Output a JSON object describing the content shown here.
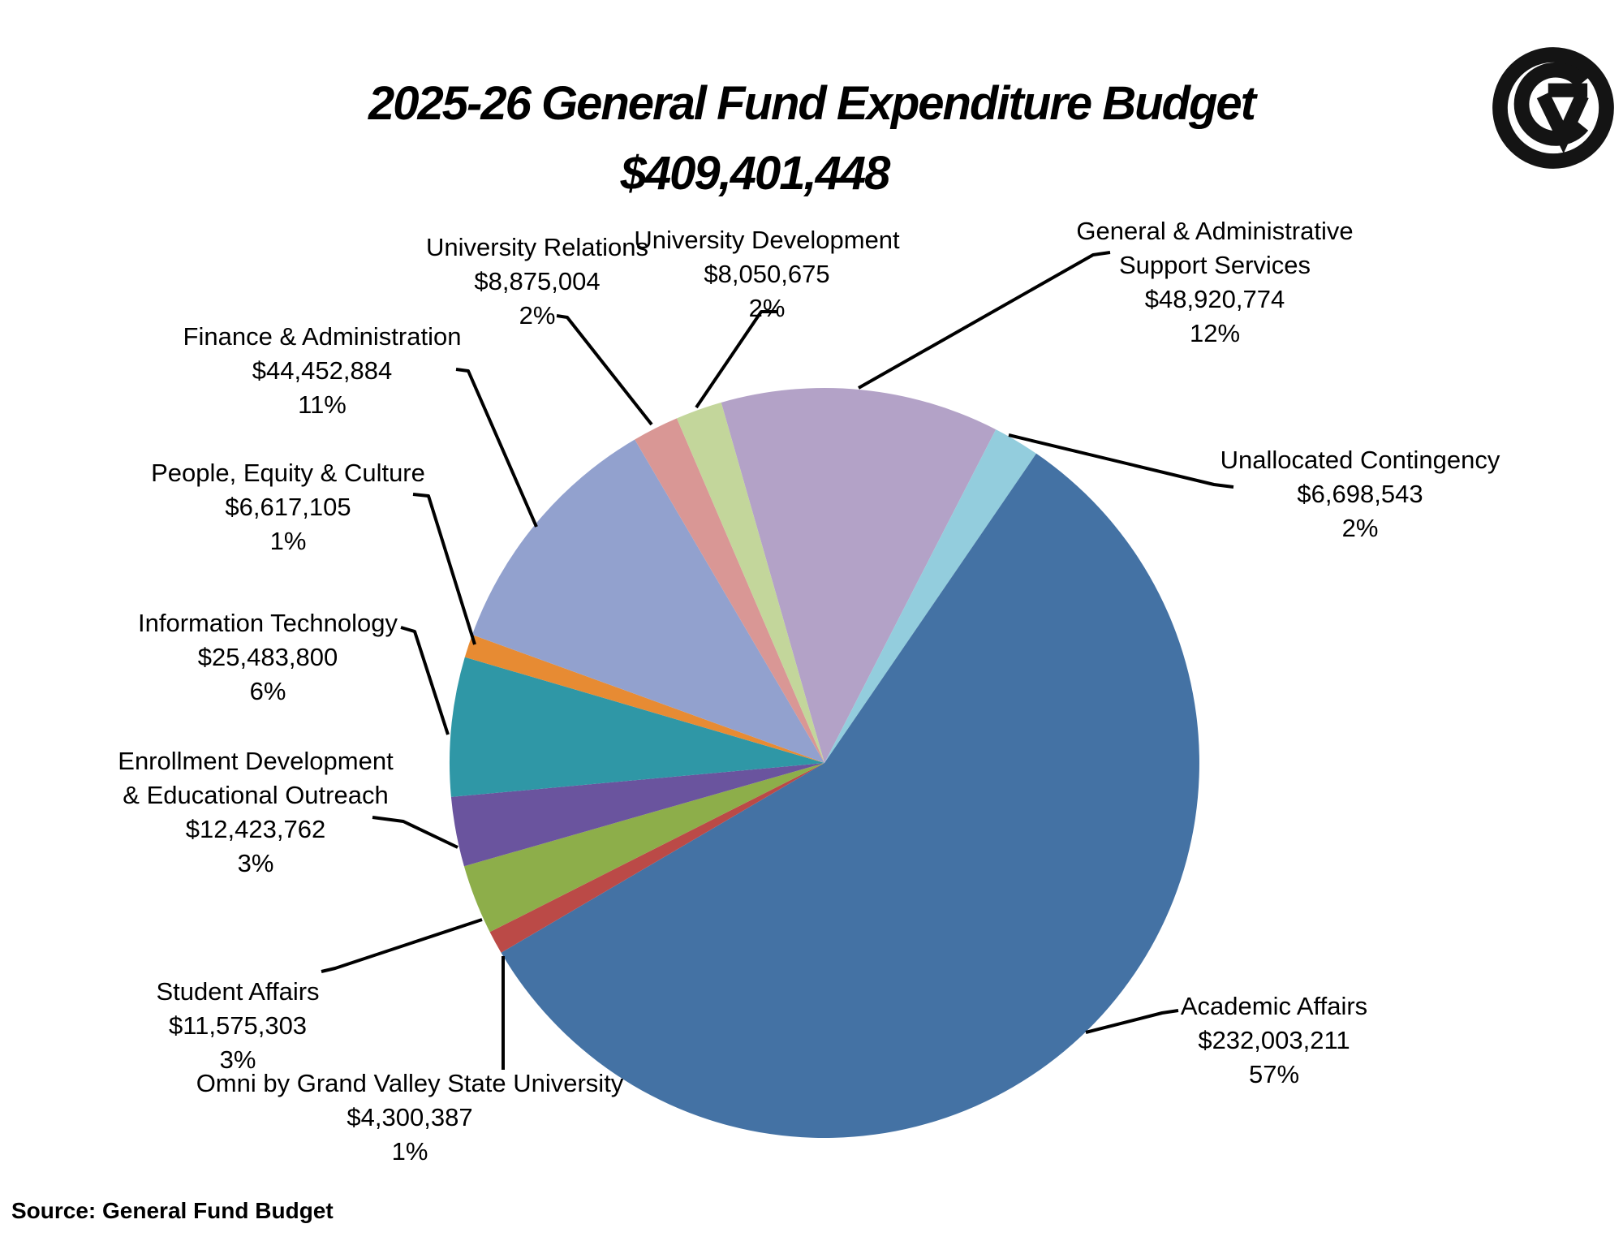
{
  "title": {
    "line1": "2025-26 General Fund Expenditure Budget",
    "line2": "$409,401,448"
  },
  "source": "Source: General Fund Budget",
  "icons": {
    "logo": "gvsu-circle-gv-monogram"
  },
  "chart_data": {
    "type": "pie",
    "title": "2025-26 General Fund Expenditure Budget",
    "total_label": "$409,401,448",
    "total_value": 409401448,
    "start_angle_deg": -16,
    "direction": "clockwise",
    "legend_position": "none",
    "labels": "outside-with-leader-lines",
    "segments": [
      {
        "id": "gen_admin",
        "name": "General & Administrative Support Services",
        "name_lines": [
          "General & Administrative",
          "Support Services"
        ],
        "value": 48920774,
        "value_label": "$48,920,774",
        "pct": 12,
        "pct_label": "12%",
        "color": "#B3A2C7"
      },
      {
        "id": "unallocated",
        "name": "Unallocated Contingency",
        "name_lines": [
          "Unallocated Contingency"
        ],
        "value": 6698543,
        "value_label": "$6,698,543",
        "pct": 2,
        "pct_label": "2%",
        "color": "#93CDDD"
      },
      {
        "id": "academic",
        "name": "Academic Affairs",
        "name_lines": [
          "Academic Affairs"
        ],
        "value": 232003211,
        "value_label": "$232,003,211",
        "pct": 57,
        "pct_label": "57%",
        "color": "#4472A4"
      },
      {
        "id": "omni",
        "name": "Omni by Grand Valley State University",
        "name_lines": [
          "Omni by Grand Valley State University"
        ],
        "value": 4300387,
        "value_label": "$4,300,387",
        "pct": 1,
        "pct_label": "1%",
        "color": "#BB4A47"
      },
      {
        "id": "student",
        "name": "Student Affairs",
        "name_lines": [
          "Student Affairs"
        ],
        "value": 11575303,
        "value_label": "$11,575,303",
        "pct": 3,
        "pct_label": "3%",
        "color": "#8DAE4A"
      },
      {
        "id": "enrollment",
        "name": "Enrollment Development & Educational Outreach",
        "name_lines": [
          "Enrollment Development",
          "& Educational Outreach"
        ],
        "value": 12423762,
        "value_label": "$12,423,762",
        "pct": 3,
        "pct_label": "3%",
        "color": "#6A549E"
      },
      {
        "id": "it",
        "name": "Information Technology",
        "name_lines": [
          "Information Technology"
        ],
        "value": 25483800,
        "value_label": "$25,483,800",
        "pct": 6,
        "pct_label": "6%",
        "color": "#2F97A6"
      },
      {
        "id": "people",
        "name": "People, Equity & Culture",
        "name_lines": [
          "People, Equity & Culture"
        ],
        "value": 6617105,
        "value_label": "$6,617,105",
        "pct": 1,
        "pct_label": "1%",
        "color": "#E78B33"
      },
      {
        "id": "finance",
        "name": "Finance & Administration",
        "name_lines": [
          "Finance & Administration"
        ],
        "value": 44452884,
        "value_label": "$44,452,884",
        "pct": 11,
        "pct_label": "11%",
        "color": "#92A1CE"
      },
      {
        "id": "univ_rel",
        "name": "University Relations",
        "name_lines": [
          "University Relations"
        ],
        "value": 8875004,
        "value_label": "$8,875,004",
        "pct": 2,
        "pct_label": "2%",
        "color": "#D99795"
      },
      {
        "id": "univ_dev",
        "name": "University Development",
        "name_lines": [
          "University Development"
        ],
        "value": 8050675,
        "value_label": "$8,050,675",
        "pct": 2,
        "pct_label": "2%",
        "color": "#C3D69B"
      }
    ]
  }
}
